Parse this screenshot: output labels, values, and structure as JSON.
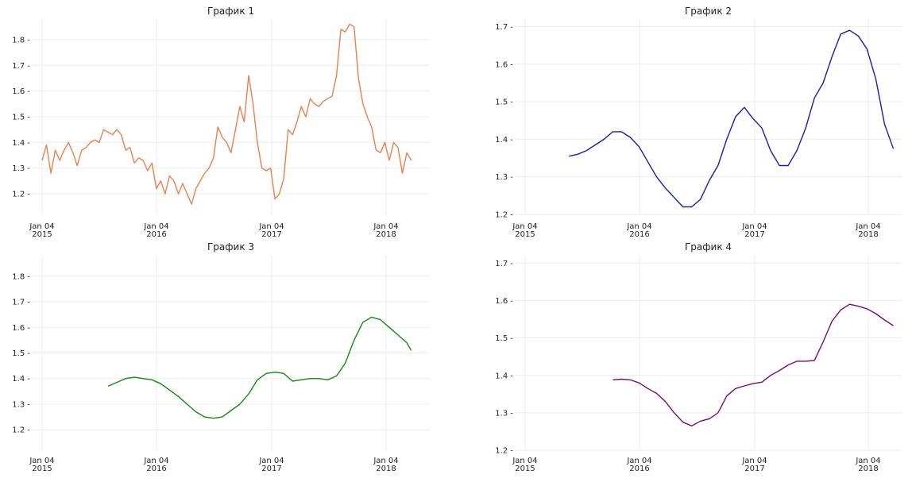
{
  "chart_data": [
    {
      "type": "line",
      "title": "График 1",
      "xlabel": "",
      "ylabel": "",
      "ylim": [
        1.12,
        1.88
      ],
      "yticks": [
        "1.2",
        "1.3",
        "1.4",
        "1.5",
        "1.6",
        "1.7",
        "1.8"
      ],
      "xticks": [
        "Jan 04\n2015",
        "Jan 04\n2016",
        "Jan 04\n2017",
        "Jan 04\n2018"
      ],
      "grid": true,
      "color": "#e8804f",
      "x": [
        "2015-01-04",
        "2015-01-18",
        "2015-02-01",
        "2015-02-15",
        "2015-03-01",
        "2015-03-15",
        "2015-03-29",
        "2015-04-12",
        "2015-04-26",
        "2015-05-10",
        "2015-05-24",
        "2015-06-07",
        "2015-06-21",
        "2015-07-05",
        "2015-07-19",
        "2015-08-02",
        "2015-08-16",
        "2015-08-30",
        "2015-09-13",
        "2015-09-27",
        "2015-10-11",
        "2015-10-25",
        "2015-11-08",
        "2015-11-22",
        "2015-12-06",
        "2015-12-20",
        "2016-01-03",
        "2016-01-17",
        "2016-01-31",
        "2016-02-14",
        "2016-02-28",
        "2016-03-13",
        "2016-03-27",
        "2016-04-10",
        "2016-04-24",
        "2016-05-08",
        "2016-05-22",
        "2016-06-05",
        "2016-06-19",
        "2016-07-03",
        "2016-07-17",
        "2016-07-31",
        "2016-08-14",
        "2016-08-28",
        "2016-09-11",
        "2016-09-25",
        "2016-10-09",
        "2016-10-23",
        "2016-11-06",
        "2016-11-20",
        "2016-12-04",
        "2016-12-18",
        "2017-01-01",
        "2017-01-15",
        "2017-01-29",
        "2017-02-12",
        "2017-02-26",
        "2017-03-12",
        "2017-03-26",
        "2017-04-09",
        "2017-04-23",
        "2017-05-07",
        "2017-05-21",
        "2017-06-04",
        "2017-06-18",
        "2017-07-02",
        "2017-07-16",
        "2017-07-30",
        "2017-08-13",
        "2017-08-27",
        "2017-09-10",
        "2017-09-24",
        "2017-10-08",
        "2017-10-22",
        "2017-11-05",
        "2017-11-19",
        "2017-12-03",
        "2017-12-17",
        "2017-12-31",
        "2018-01-14",
        "2018-01-28",
        "2018-02-11",
        "2018-02-25",
        "2018-03-11",
        "2018-03-25"
      ],
      "values": [
        1.33,
        1.39,
        1.28,
        1.37,
        1.33,
        1.37,
        1.4,
        1.36,
        1.31,
        1.37,
        1.38,
        1.4,
        1.41,
        1.4,
        1.45,
        1.44,
        1.43,
        1.45,
        1.43,
        1.37,
        1.38,
        1.32,
        1.34,
        1.33,
        1.29,
        1.32,
        1.22,
        1.25,
        1.2,
        1.27,
        1.25,
        1.2,
        1.24,
        1.2,
        1.16,
        1.22,
        1.25,
        1.28,
        1.3,
        1.34,
        1.46,
        1.42,
        1.4,
        1.36,
        1.45,
        1.54,
        1.48,
        1.66,
        1.55,
        1.4,
        1.3,
        1.29,
        1.3,
        1.18,
        1.2,
        1.26,
        1.45,
        1.43,
        1.48,
        1.54,
        1.5,
        1.57,
        1.55,
        1.54,
        1.56,
        1.57,
        1.58,
        1.66,
        1.84,
        1.83,
        1.86,
        1.85,
        1.65,
        1.55,
        1.5,
        1.46,
        1.37,
        1.36,
        1.4,
        1.33,
        1.4,
        1.38,
        1.28,
        1.36,
        1.33
      ]
    },
    {
      "type": "line",
      "title": "График 2",
      "xlabel": "",
      "ylabel": "",
      "ylim": [
        1.2,
        1.72
      ],
      "yticks": [
        "1.2",
        "1.3",
        "1.4",
        "1.5",
        "1.6",
        "1.7"
      ],
      "xticks": [
        "Jan 04\n2015",
        "Jan 04\n2016",
        "Jan 04\n2017",
        "Jan 04\n2018"
      ],
      "grid": true,
      "color": "#1b1bb0",
      "x": [
        "2015-05-24",
        "2015-06-21",
        "2015-07-19",
        "2015-08-16",
        "2015-09-13",
        "2015-10-11",
        "2015-11-08",
        "2015-12-06",
        "2016-01-03",
        "2016-01-31",
        "2016-02-28",
        "2016-03-27",
        "2016-04-24",
        "2016-05-22",
        "2016-06-19",
        "2016-07-17",
        "2016-08-14",
        "2016-09-11",
        "2016-10-09",
        "2016-11-06",
        "2016-12-04",
        "2017-01-01",
        "2017-01-29",
        "2017-02-26",
        "2017-03-26",
        "2017-04-23",
        "2017-05-21",
        "2017-06-18",
        "2017-07-16",
        "2017-08-13",
        "2017-09-10",
        "2017-10-08",
        "2017-11-05",
        "2017-12-03",
        "2017-12-31",
        "2018-01-28",
        "2018-02-25",
        "2018-03-25"
      ],
      "values": [
        1.355,
        1.36,
        1.37,
        1.385,
        1.4,
        1.42,
        1.42,
        1.405,
        1.38,
        1.34,
        1.3,
        1.27,
        1.245,
        1.22,
        1.22,
        1.24,
        1.29,
        1.33,
        1.4,
        1.46,
        1.485,
        1.455,
        1.43,
        1.37,
        1.33,
        1.33,
        1.37,
        1.43,
        1.51,
        1.55,
        1.62,
        1.68,
        1.69,
        1.675,
        1.64,
        1.56,
        1.44,
        1.375
      ]
    },
    {
      "type": "line",
      "title": "График 3",
      "xlabel": "",
      "ylabel": "",
      "ylim": [
        1.12,
        1.88
      ],
      "yticks": [
        "1.2",
        "1.3",
        "1.4",
        "1.5",
        "1.6",
        "1.7",
        "1.8"
      ],
      "xticks": [
        "Jan 04\n2015",
        "Jan 04\n2016",
        "Jan 04\n2017",
        "Jan 04\n2018"
      ],
      "grid": true,
      "color": "#138a13",
      "x": [
        "2015-08-02",
        "2015-08-30",
        "2015-09-27",
        "2015-10-25",
        "2015-11-22",
        "2015-12-20",
        "2016-01-17",
        "2016-02-14",
        "2016-03-13",
        "2016-04-10",
        "2016-05-08",
        "2016-06-05",
        "2016-07-03",
        "2016-07-31",
        "2016-08-28",
        "2016-09-25",
        "2016-10-23",
        "2016-11-20",
        "2016-12-18",
        "2017-01-15",
        "2017-02-12",
        "2017-03-12",
        "2017-04-09",
        "2017-05-07",
        "2017-06-04",
        "2017-07-02",
        "2017-07-30",
        "2017-08-27",
        "2017-09-24",
        "2017-10-22",
        "2017-11-19",
        "2017-12-17",
        "2018-01-14",
        "2018-02-11",
        "2018-03-11",
        "2018-03-25"
      ],
      "values": [
        1.37,
        1.385,
        1.4,
        1.405,
        1.4,
        1.395,
        1.38,
        1.355,
        1.33,
        1.3,
        1.27,
        1.25,
        1.245,
        1.25,
        1.275,
        1.3,
        1.34,
        1.395,
        1.42,
        1.425,
        1.42,
        1.39,
        1.395,
        1.4,
        1.4,
        1.395,
        1.41,
        1.46,
        1.55,
        1.62,
        1.64,
        1.63,
        1.6,
        1.57,
        1.54,
        1.51
      ]
    },
    {
      "type": "line",
      "title": "График 4",
      "xlabel": "",
      "ylabel": "",
      "ylim": [
        1.2,
        1.72
      ],
      "yticks": [
        "1.2",
        "1.3",
        "1.4",
        "1.5",
        "1.6",
        "1.7"
      ],
      "xticks": [
        "Jan 04\n2015",
        "Jan 04\n2016",
        "Jan 04\n2017",
        "Jan 04\n2018"
      ],
      "grid": true,
      "color": "#750d75",
      "x": [
        "2015-10-11",
        "2015-11-08",
        "2015-12-06",
        "2016-01-03",
        "2016-01-31",
        "2016-02-28",
        "2016-03-27",
        "2016-04-24",
        "2016-05-22",
        "2016-06-19",
        "2016-07-17",
        "2016-08-14",
        "2016-09-11",
        "2016-10-09",
        "2016-11-06",
        "2016-12-04",
        "2017-01-01",
        "2017-01-29",
        "2017-02-26",
        "2017-03-26",
        "2017-04-23",
        "2017-05-21",
        "2017-06-18",
        "2017-07-16",
        "2017-08-13",
        "2017-09-10",
        "2017-10-08",
        "2017-11-05",
        "2017-12-03",
        "2017-12-31",
        "2018-01-28",
        "2018-02-25",
        "2018-03-25"
      ],
      "values": [
        1.388,
        1.39,
        1.388,
        1.38,
        1.365,
        1.352,
        1.33,
        1.3,
        1.275,
        1.265,
        1.278,
        1.284,
        1.3,
        1.345,
        1.365,
        1.372,
        1.378,
        1.382,
        1.4,
        1.413,
        1.428,
        1.438,
        1.438,
        1.44,
        1.49,
        1.545,
        1.575,
        1.59,
        1.585,
        1.578,
        1.565,
        1.548,
        1.533
      ]
    }
  ]
}
